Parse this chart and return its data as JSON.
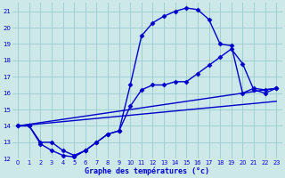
{
  "title": "Graphe des températures (°c)",
  "bg_color": "#cce8e8",
  "line_color": "#0000cc",
  "grid_color": "#99cccc",
  "xlim": [
    -0.5,
    23.5
  ],
  "ylim": [
    12,
    21.5
  ],
  "xticks": [
    0,
    1,
    2,
    3,
    4,
    5,
    6,
    7,
    8,
    9,
    10,
    11,
    12,
    13,
    14,
    15,
    16,
    17,
    18,
    19,
    20,
    21,
    22,
    23
  ],
  "yticks": [
    12,
    13,
    14,
    15,
    16,
    17,
    18,
    19,
    20,
    21
  ],
  "series": [
    {
      "x": [
        0,
        1,
        2,
        3,
        4,
        5,
        6,
        7,
        8,
        9,
        10,
        11,
        12,
        13,
        14,
        15,
        16,
        17,
        18,
        19,
        20,
        21,
        22,
        23
      ],
      "y": [
        14.0,
        14.0,
        12.9,
        12.5,
        12.2,
        12.1,
        12.5,
        13.0,
        13.5,
        13.7,
        16.5,
        19.5,
        20.3,
        20.7,
        21.0,
        21.2,
        21.1,
        20.5,
        19.0,
        18.9,
        16.0,
        16.3,
        16.2,
        16.3
      ],
      "marker": "D",
      "markersize": 2.5,
      "lw": 1.0
    },
    {
      "x": [
        0,
        1,
        2,
        3,
        4,
        5,
        6,
        7,
        8,
        9,
        10,
        11,
        12,
        13,
        14,
        15,
        16,
        17,
        18,
        19,
        20,
        21,
        22,
        23
      ],
      "y": [
        14.0,
        14.0,
        13.0,
        13.0,
        12.5,
        12.2,
        12.5,
        13.0,
        13.5,
        13.7,
        15.2,
        16.2,
        16.5,
        16.5,
        16.7,
        16.7,
        17.2,
        17.7,
        18.2,
        18.7,
        17.8,
        16.2,
        16.0,
        16.3
      ],
      "marker": "D",
      "markersize": 2.5,
      "lw": 1.0
    },
    {
      "x": [
        0,
        23
      ],
      "y": [
        14.0,
        15.5
      ],
      "marker": null,
      "markersize": 0,
      "lw": 1.0
    },
    {
      "x": [
        0,
        23
      ],
      "y": [
        14.0,
        16.3
      ],
      "marker": null,
      "markersize": 0,
      "lw": 1.0
    }
  ]
}
